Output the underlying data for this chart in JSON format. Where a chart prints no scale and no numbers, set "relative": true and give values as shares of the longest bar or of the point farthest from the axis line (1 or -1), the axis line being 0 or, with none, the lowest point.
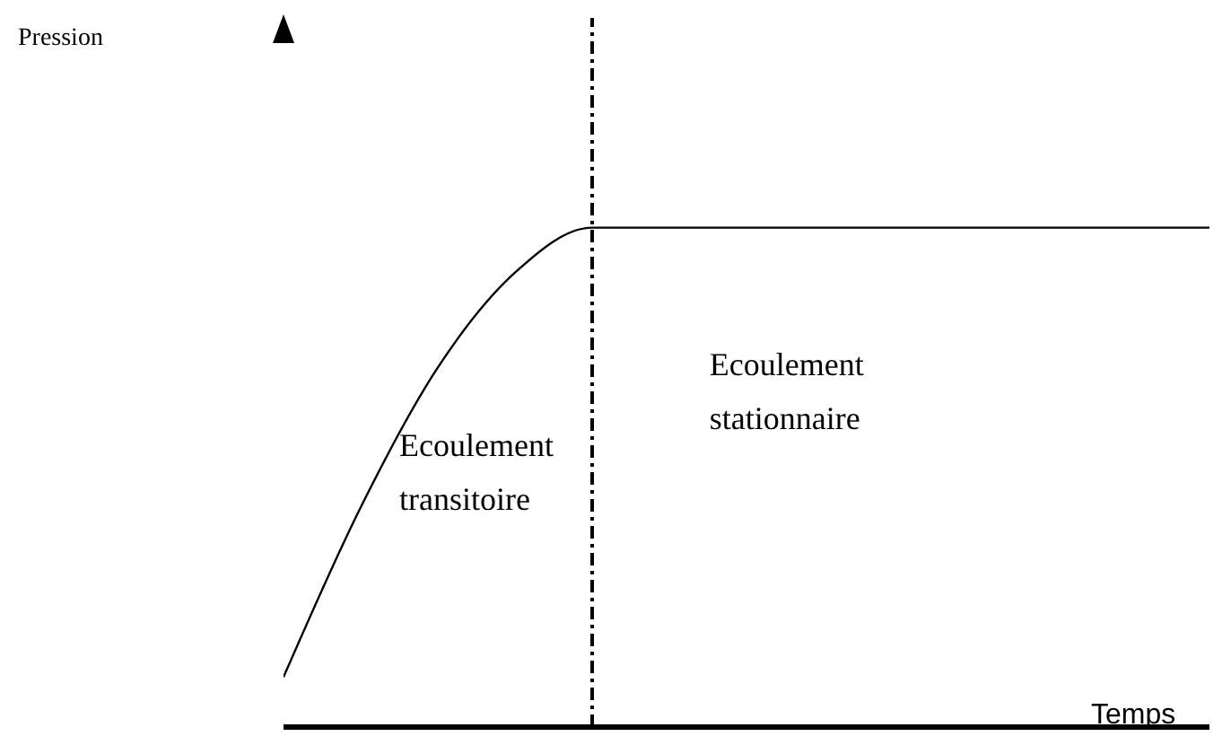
{
  "chart_data": {
    "type": "line",
    "relative": true,
    "xlabel": "Temps",
    "categories": [
      null,
      null,
      null,
      null,
      null,
      null,
      null,
      null,
      null,
      null,
      null,
      null,
      null
    ],
    "values": [
      0.1,
      0.44,
      0.72,
      0.91,
      1,
      1,
      1,
      1,
      1,
      1,
      1,
      1,
      1
    ],
    "color": "#000000",
    "marker": "none",
    "line_style": "solid",
    "annotations": [
      "Pression",
      "Ecoulement transitoire",
      "Ecoulement stationnaire"
    ]
  }
}
